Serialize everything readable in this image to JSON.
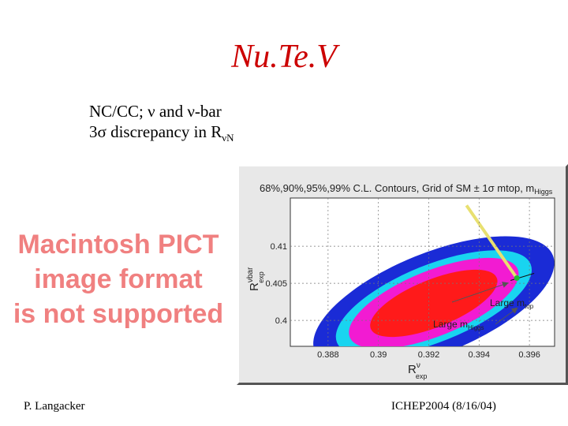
{
  "slide": {
    "title": "Nu.Te.V",
    "bullets": [
      {
        "text": "NC/CC; ν and ν-bar"
      },
      {
        "text": "3σ discrepancy in R",
        "sub": "νN"
      }
    ],
    "pict_message": [
      "Macintosh PICT",
      "image format",
      "is not supported"
    ],
    "footer_left": "P. Langacker",
    "footer_right": "ICHEP2004 (8/16/04)"
  },
  "chart_data": {
    "type": "contour",
    "title": "68%,90%,95%,99% C.L. Contours, Grid of SM ± 1σ mtop, m",
    "title_sub": "Higgs",
    "xlabel": "R",
    "xlabel_sup": "ν",
    "xlabel_sub": "exp",
    "ylabel": "R",
    "ylabel_sup": "νbar",
    "ylabel_sub": "exp",
    "xlim": [
      0.3865,
      0.397
    ],
    "ylim": [
      0.3965,
      0.4165
    ],
    "x_ticks": [
      {
        "value": 0.388,
        "label": "0.388"
      },
      {
        "value": 0.39,
        "label": "0.39"
      },
      {
        "value": 0.392,
        "label": "0.392"
      },
      {
        "value": 0.394,
        "label": "0.394"
      },
      {
        "value": 0.396,
        "label": "0.396"
      }
    ],
    "y_ticks": [
      {
        "value": 0.41,
        "label": "0.41"
      },
      {
        "value": 0.405,
        "label": "0.405"
      },
      {
        "value": 0.4,
        "label": "0.4"
      }
    ],
    "center": [
      0.3922,
      0.4023
    ],
    "contours": [
      {
        "level": "99%",
        "semi_x": 0.0051,
        "semi_y": 0.0068,
        "color": "#1a2bd6"
      },
      {
        "level": "95%",
        "semi_x": 0.00415,
        "semi_y": 0.0052,
        "color": "#19d4f0"
      },
      {
        "level": "90%",
        "semi_x": 0.0036,
        "semi_y": 0.0044,
        "color": "#f21bd2"
      },
      {
        "level": "68%",
        "semi_x": 0.0027,
        "semi_y": 0.0032,
        "color": "#ff1a1a"
      }
    ],
    "sm_prediction": {
      "x": 0.3955,
      "y": 0.4057,
      "color": "#22bb33"
    },
    "arrow_from": [
      0.3935,
      0.4155
    ],
    "arrow_color": "#e8e070",
    "annotations": [
      {
        "label": "Large m",
        "sub": "top"
      },
      {
        "label": "Large m",
        "sub": "Higgs"
      }
    ]
  }
}
